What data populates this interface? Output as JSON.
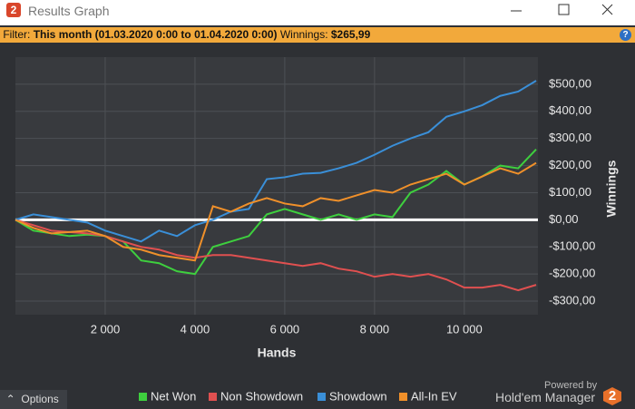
{
  "window": {
    "icon_text": "2",
    "title": "Results Graph"
  },
  "filter": {
    "label": "Filter:",
    "period": "This month (01.03.2020 0:00 to 01.04.2020 0:00)",
    "winnings_label": "Winnings:",
    "winnings": "$265,99",
    "help": "?"
  },
  "chart_data": {
    "type": "line",
    "x_label": "Hands",
    "y_label": "Winnings",
    "x": [
      0,
      400,
      800,
      1200,
      1600,
      2000,
      2400,
      2800,
      3200,
      3600,
      4000,
      4400,
      4800,
      5200,
      5600,
      6000,
      6400,
      6800,
      7200,
      7600,
      8000,
      8400,
      8800,
      9200,
      9600,
      10000,
      10400,
      10800,
      11200,
      11600
    ],
    "series": [
      {
        "name": "Net Won",
        "color": "#3ecf3e",
        "values": [
          0,
          -40,
          -50,
          -60,
          -55,
          -60,
          -80,
          -150,
          -160,
          -190,
          -200,
          -100,
          -80,
          -60,
          20,
          40,
          20,
          0,
          20,
          0,
          20,
          10,
          100,
          130,
          180,
          130,
          160,
          200,
          190,
          260
        ]
      },
      {
        "name": "Non Showdown",
        "color": "#e05050",
        "values": [
          0,
          -20,
          -40,
          -45,
          -50,
          -60,
          -80,
          -100,
          -110,
          -130,
          -140,
          -130,
          -130,
          -140,
          -150,
          -160,
          -170,
          -160,
          -180,
          -190,
          -210,
          -200,
          -210,
          -200,
          -220,
          -250,
          -250,
          -240,
          -260,
          -240
        ]
      },
      {
        "name": "Showdown",
        "color": "#3a8fd8",
        "values": [
          0,
          20,
          10,
          0,
          -10,
          -40,
          -60,
          -80,
          -40,
          -60,
          -20,
          0,
          30,
          40,
          150,
          157,
          170,
          173,
          190,
          210,
          240,
          273,
          300,
          323,
          380,
          400,
          423,
          457,
          473,
          513
        ]
      },
      {
        "name": "All-In EV",
        "color": "#f0902a",
        "values": [
          0,
          -30,
          -50,
          -45,
          -40,
          -60,
          -100,
          -110,
          -130,
          -140,
          -150,
          50,
          30,
          60,
          80,
          60,
          50,
          80,
          70,
          90,
          110,
          100,
          130,
          150,
          170,
          130,
          160,
          190,
          170,
          210
        ]
      }
    ],
    "xlim": [
      0,
      11640
    ],
    "xticks": [
      {
        "value": 2000,
        "label": "2 000"
      },
      {
        "value": 4000,
        "label": "4 000"
      },
      {
        "value": 6000,
        "label": "6 000"
      },
      {
        "value": 8000,
        "label": "8 000"
      },
      {
        "value": 10000,
        "label": "10 000"
      }
    ],
    "ylim": [
      -350,
      600
    ],
    "yticks": [
      {
        "value": -300,
        "label": "-$300,00"
      },
      {
        "value": -200,
        "label": "-$200,00"
      },
      {
        "value": -100,
        "label": "-$100,00"
      },
      {
        "value": 0,
        "label": "$0,00"
      },
      {
        "value": 100,
        "label": "$100,00"
      },
      {
        "value": 200,
        "label": "$200,00"
      },
      {
        "value": 300,
        "label": "$300,00"
      },
      {
        "value": 400,
        "label": "$400,00"
      },
      {
        "value": 500,
        "label": "$500,00"
      }
    ],
    "grid": true
  },
  "footer": {
    "options": "Options",
    "powered_by": "Powered by",
    "brand": "Hold'em Manager",
    "logo_text": "2"
  }
}
